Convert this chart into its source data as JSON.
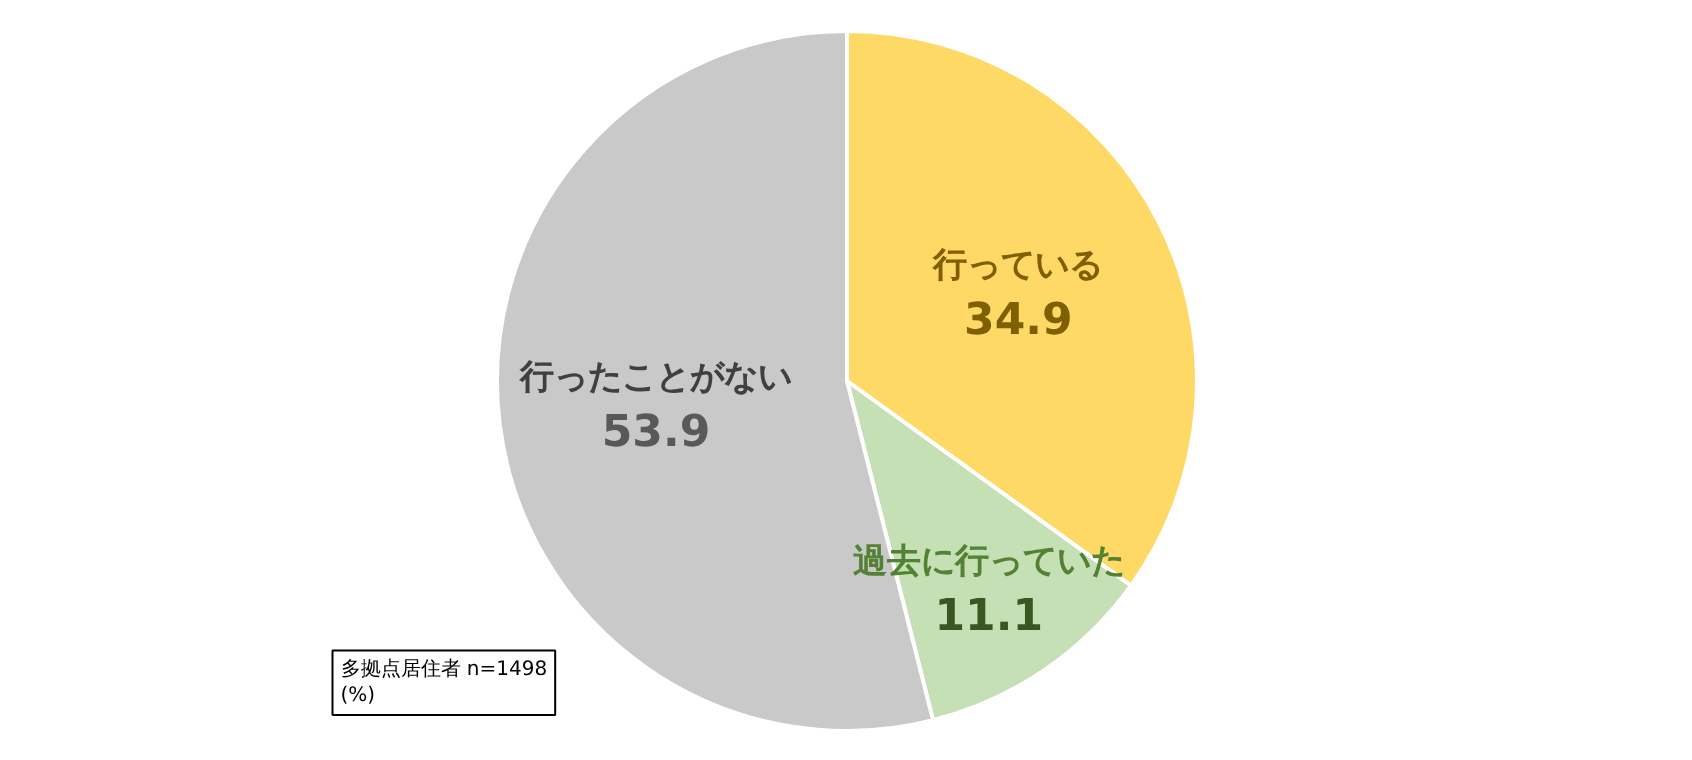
{
  "chart_data": {
    "type": "pie",
    "categories": [
      "行っている",
      "過去に行っていた",
      "行ったことがない"
    ],
    "values": [
      34.9,
      11.1,
      53.9
    ],
    "colors": [
      "#ffd966",
      "#c5e0b4",
      "#c9c9c9"
    ],
    "data_labels": true,
    "annotations": [
      "多拠点居住者 n=1498\n(%)"
    ]
  }
}
